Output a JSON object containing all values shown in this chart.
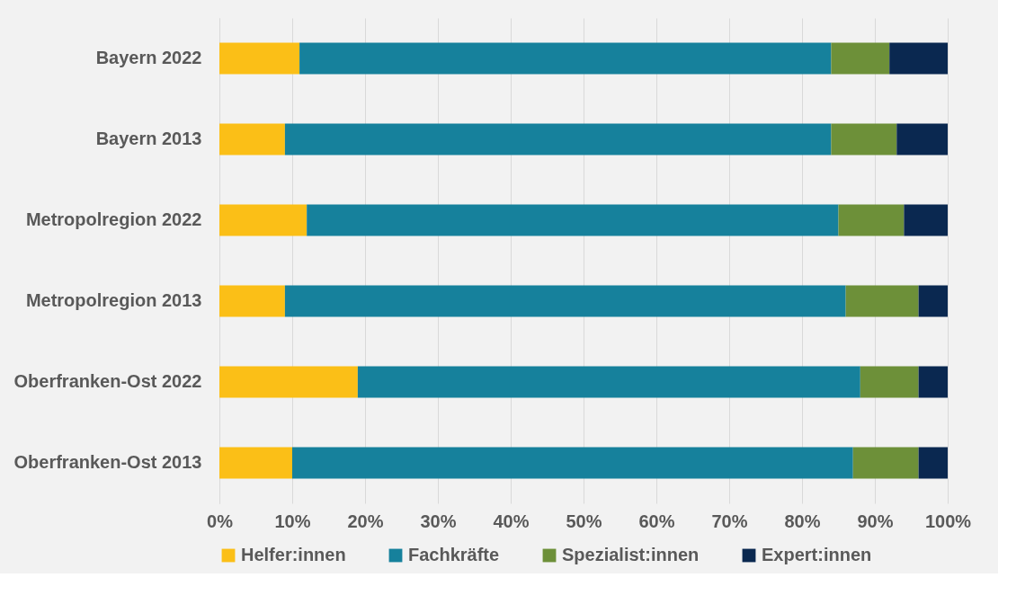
{
  "chart_data": {
    "type": "bar",
    "orientation": "horizontal",
    "stacked": true,
    "categories": [
      "Bayern 2022",
      "Bayern 2013",
      "Metropolregion 2022",
      "Metropolregion 2013",
      "Oberfranken-Ost 2022",
      "Oberfranken-Ost 2013"
    ],
    "series": [
      {
        "name": "Helfer:innen",
        "color": "#fbbf17",
        "values": [
          11,
          9,
          12,
          9,
          19,
          10
        ]
      },
      {
        "name": "Fachkräfte",
        "color": "#16819c",
        "values": [
          73,
          75,
          73,
          77,
          69,
          77
        ]
      },
      {
        "name": "Spezialist:innen",
        "color": "#6d9039",
        "values": [
          8,
          9,
          9,
          10,
          8,
          9
        ]
      },
      {
        "name": "Expert:innen",
        "color": "#0a2850",
        "values": [
          8,
          7,
          6,
          4,
          4,
          4
        ]
      }
    ],
    "xlim": [
      0,
      100
    ],
    "xticks": [
      {
        "value": 0,
        "label": "0%"
      },
      {
        "value": 10,
        "label": "10%"
      },
      {
        "value": 20,
        "label": "20%"
      },
      {
        "value": 30,
        "label": "30%"
      },
      {
        "value": 40,
        "label": "40%"
      },
      {
        "value": 50,
        "label": "50%"
      },
      {
        "value": 60,
        "label": "60%"
      },
      {
        "value": 70,
        "label": "70%"
      },
      {
        "value": 80,
        "label": "80%"
      },
      {
        "value": 90,
        "label": "90%"
      },
      {
        "value": 100,
        "label": "100%"
      }
    ],
    "grid": "x",
    "legend": "bottom"
  }
}
